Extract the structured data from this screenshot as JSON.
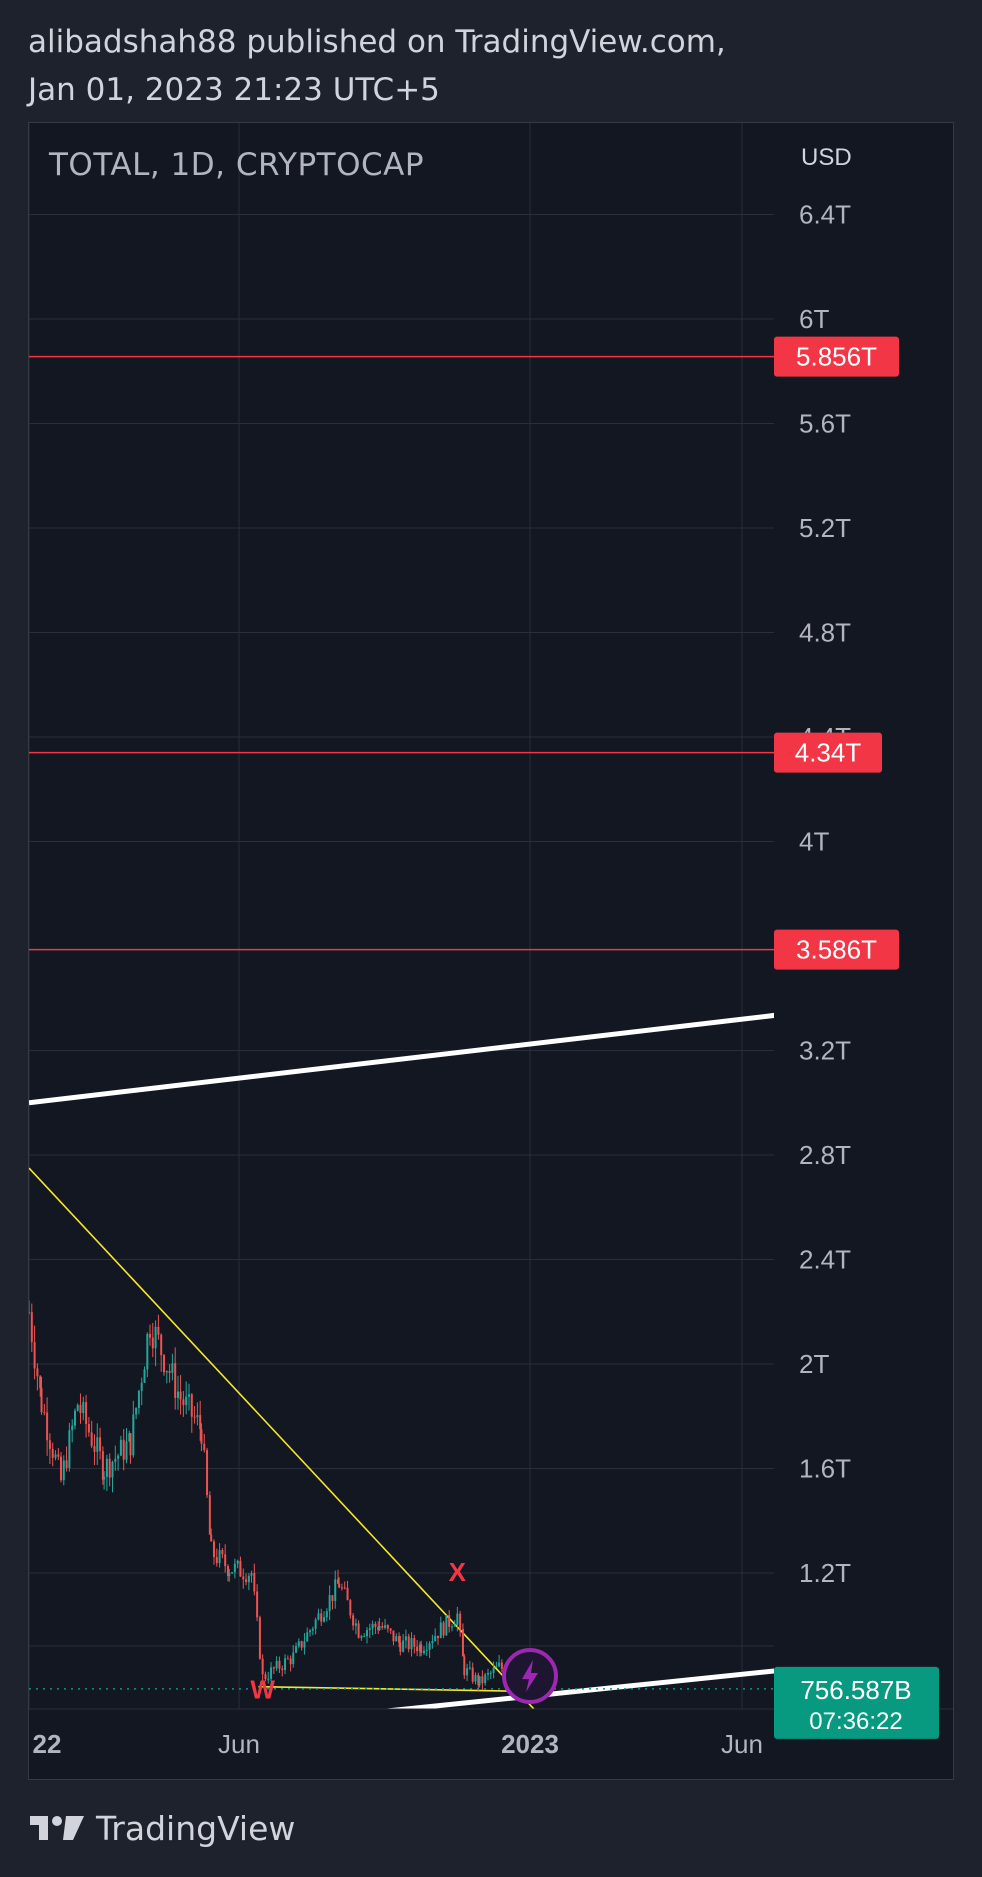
{
  "header": {
    "line1": "alibadshah88 published on TradingView.com,",
    "line2": "Jan 01, 2023 21:23 UTC+5"
  },
  "footer": {
    "brand": "TradingView",
    "logo_icon": "tradingview-logo-icon"
  },
  "colors": {
    "background": "#131722",
    "grid": "#2a2e39",
    "resistance": "#f23645",
    "channel": "#ffffff",
    "triangle": "#f5e72b",
    "up_candle": "#26a69a",
    "down_candle": "#ef5350",
    "price_label": "#089981",
    "lightning": "#9c27b0"
  },
  "chart_data": {
    "type": "candlestick",
    "title": "TOTAL, 1D, CRYPTOCAP",
    "currency": "USD",
    "y_unit": "trillion USD",
    "y_scale": "linear",
    "grid": true,
    "x_ticks": [
      "22",
      "Jun",
      "2023",
      "Jun"
    ],
    "y_ticks": [
      "6.4T",
      "6T",
      "5.6T",
      "5.2T",
      "4.8T",
      "4.4T",
      "4T",
      "3.2T",
      "2.8T",
      "2.4T",
      "2T",
      "1.6T",
      "1.2T"
    ],
    "horizontal_levels": [
      {
        "value": 5.856,
        "label": "5.856T"
      },
      {
        "value": 4.34,
        "label": "4.34T"
      },
      {
        "value": 3.586,
        "label": "3.586T"
      }
    ],
    "current_price": {
      "label": "756.587B",
      "value": 0.7566,
      "countdown": "07:36:22"
    },
    "annotations": [
      {
        "text": "W",
        "date": "2022-06-18",
        "price": 0.72
      },
      {
        "text": "X",
        "date": "2022-11-05",
        "price": 1.17
      }
    ],
    "trendlines": [
      {
        "name": "channel_upper",
        "style": "white",
        "from": {
          "date": "2022-01-01",
          "price": 3.0
        },
        "to": {
          "date": "2023-06-30",
          "price": 3.34
        }
      },
      {
        "name": "channel_lower",
        "style": "white",
        "from": {
          "date": "2022-02-06",
          "price": 0.55
        },
        "to": {
          "date": "2023-06-30",
          "price": 0.83
        }
      },
      {
        "name": "triangle_top",
        "style": "yellow",
        "from": {
          "date": "2022-01-01",
          "price": 2.75
        },
        "to": {
          "date": "2023-01-20",
          "price": 0.56
        }
      },
      {
        "name": "triangle_base",
        "style": "yellow",
        "from": {
          "date": "2022-06-15",
          "price": 0.765
        },
        "to": {
          "date": "2023-01-12",
          "price": 0.745
        }
      }
    ],
    "price_path": [
      {
        "date": "2022-01-01",
        "price": 2.2
      },
      {
        "date": "2022-01-10",
        "price": 1.85
      },
      {
        "date": "2022-01-24",
        "price": 1.55
      },
      {
        "date": "2022-02-05",
        "price": 1.85
      },
      {
        "date": "2022-02-24",
        "price": 1.6
      },
      {
        "date": "2022-03-15",
        "price": 1.7
      },
      {
        "date": "2022-03-29",
        "price": 2.16
      },
      {
        "date": "2022-04-20",
        "price": 1.87
      },
      {
        "date": "2022-05-05",
        "price": 1.75
      },
      {
        "date": "2022-05-12",
        "price": 1.28
      },
      {
        "date": "2022-05-25",
        "price": 1.22
      },
      {
        "date": "2022-06-10",
        "price": 1.2
      },
      {
        "date": "2022-06-18",
        "price": 0.8
      },
      {
        "date": "2022-07-10",
        "price": 0.88
      },
      {
        "date": "2022-08-12",
        "price": 1.16
      },
      {
        "date": "2022-08-26",
        "price": 0.98
      },
      {
        "date": "2022-09-10",
        "price": 1.0
      },
      {
        "date": "2022-09-25",
        "price": 0.93
      },
      {
        "date": "2022-10-10",
        "price": 0.92
      },
      {
        "date": "2022-11-05",
        "price": 1.04
      },
      {
        "date": "2022-11-10",
        "price": 0.83
      },
      {
        "date": "2022-11-21",
        "price": 0.78
      },
      {
        "date": "2022-12-05",
        "price": 0.84
      },
      {
        "date": "2022-12-20",
        "price": 0.8
      },
      {
        "date": "2023-01-01",
        "price": 0.7566
      }
    ]
  }
}
